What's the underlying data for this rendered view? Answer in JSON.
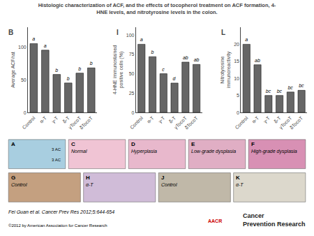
{
  "title": [
    "Histologic characterization of ACF, and the effects of tocopherol treatment on ACF formation, 4-",
    "HNE levels, and nitrotyrosine levels in the colon."
  ],
  "chart_data": [
    {
      "type": "bar",
      "title": "B",
      "categories": [
        "Control",
        "α-T",
        "γ-T",
        "δ-T",
        "γTocoT",
        "δTocoT"
      ],
      "values": [
        105,
        95,
        58,
        45,
        60,
        68
      ],
      "annotations": [
        "a",
        "a",
        "b",
        "b",
        "b",
        "b"
      ],
      "color": "#666666",
      "ylabel": "Average ACF/rat",
      "ylim": [
        0,
        130
      ],
      "yticks": [
        0,
        50,
        100
      ],
      "grid": false
    },
    {
      "type": "bar",
      "title": "I",
      "categories": [
        "Control",
        "α-T",
        "γ-T",
        "δ-T",
        "γTocoT",
        "δTocoT"
      ],
      "values": [
        88,
        72,
        50,
        38,
        65,
        62
      ],
      "annotations": [
        "a",
        "b",
        "c",
        "d",
        "ab",
        "ab"
      ],
      "color": "#666666",
      "ylabel": "4-HNE immunostained\npositive cells (%)",
      "ylim": [
        0,
        110
      ],
      "yticks": [
        0,
        25,
        50,
        75,
        100
      ],
      "grid": false
    },
    {
      "type": "bar",
      "title": "L",
      "categories": [
        "Control",
        "α-T",
        "γ-T",
        "δ-T",
        "γTocoT",
        "δTocoT"
      ],
      "values": [
        20,
        14,
        5,
        5,
        6,
        6.5
      ],
      "annotations": [
        "a",
        "ab",
        "bc",
        "bc",
        "bc",
        "bc"
      ],
      "color": "#666666",
      "ylabel": "Nitrotyrosine\nimmunoreactivity",
      "ylim": [
        0,
        25
      ],
      "yticks": [
        0,
        5,
        10,
        15,
        20
      ],
      "grid": false
    }
  ],
  "panels": [
    {
      "text": "A",
      "color": "#a8cee0",
      "annotations": [
        "3 AC",
        "3 AC"
      ]
    },
    {
      "text": "C",
      "subtitle": "Normal",
      "color": "#f0c4d4"
    },
    {
      "text": "D",
      "subtitle": "Hyperplasia",
      "color": "#e8b8cc"
    },
    {
      "text": "E",
      "subtitle": "Low-grade dysplasia",
      "color": "#e0aec4"
    },
    {
      "text": "F",
      "subtitle": "High-grade dysplasia",
      "color": "#d890b4"
    },
    {
      "text": "G",
      "subtitle": "Control",
      "color": "#c4a080"
    },
    {
      "text": "H",
      "subtitle": "α-T",
      "color": "#d0bcd8"
    },
    {
      "text": "J",
      "subtitle": "Control",
      "color": "#c0b8a8"
    },
    {
      "text": "K",
      "subtitle": "α-T",
      "color": "#dcd8cc"
    }
  ],
  "annotations": [
    {
      "text": "Fei Guan et al. Cancer Prev Res 2012;5:644-654"
    },
    {
      "text": "©2012 by American Association for Cancer Research"
    },
    {
      "text": [
        "Cancer",
        "Prevention Research"
      ],
      "color": "#222222"
    },
    {
      "text": "AACR",
      "color": "#cc0000"
    }
  ]
}
